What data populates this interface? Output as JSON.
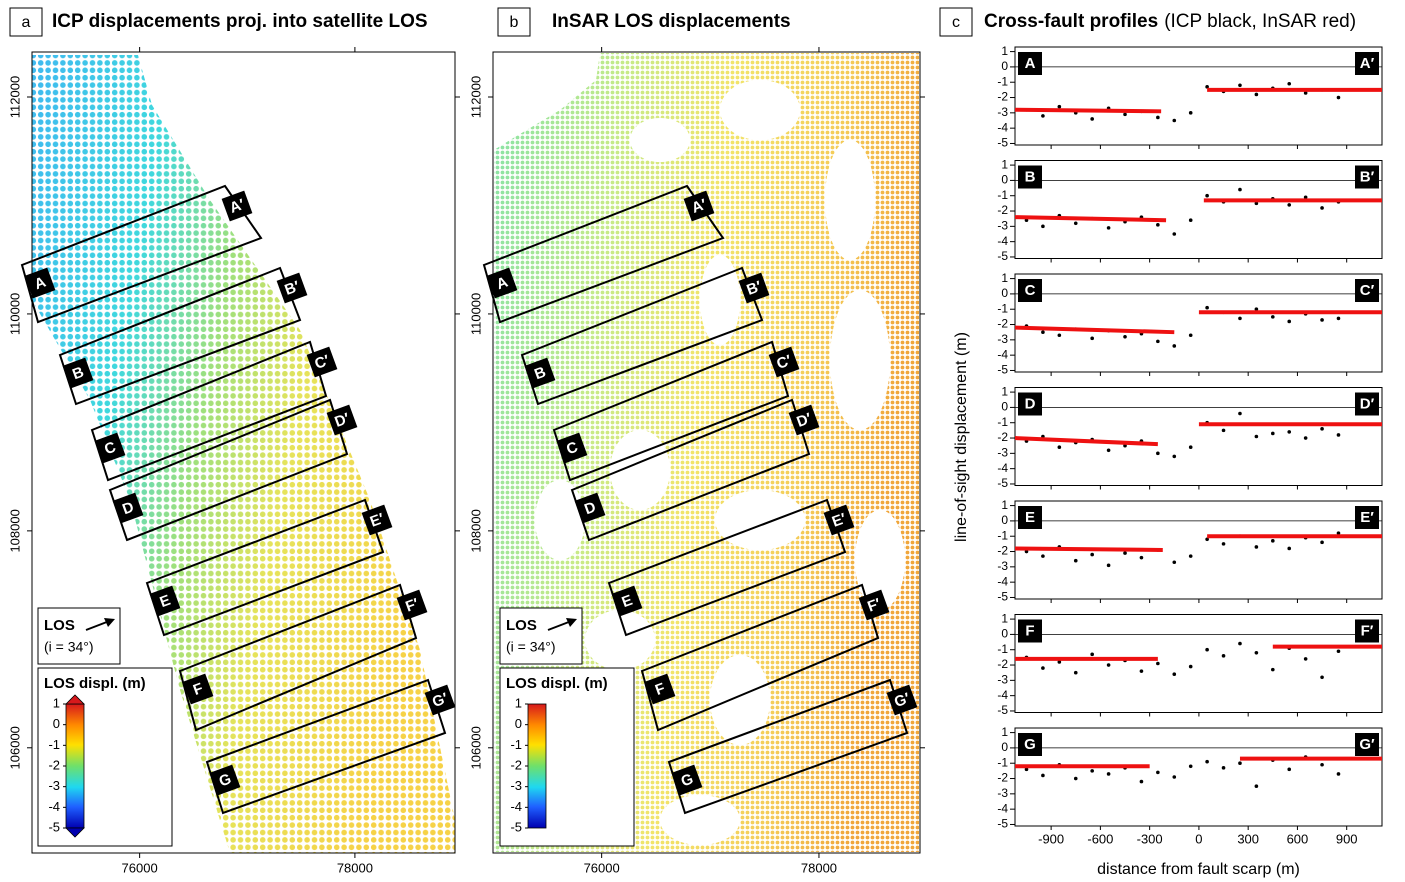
{
  "panels": [
    {
      "letter": "a",
      "title": "ICP displacements proj. into satellite LOS",
      "xlim": [
        75000,
        78930
      ],
      "xticks": [
        76000,
        78000
      ],
      "ylim": [
        105030,
        112415
      ],
      "yticks": [
        106000,
        108000,
        110000,
        112000
      ],
      "los": "LOS",
      "incidence": "(i = 34°)",
      "colorbar_title": "LOS displ. (m)",
      "colorbar_lim": [
        -5,
        1
      ],
      "colorbar_ticks": [
        1,
        0,
        -1,
        -2,
        -3,
        -4,
        -5
      ],
      "profiles": [
        {
          "start": "A",
          "end": "A′"
        },
        {
          "start": "B",
          "end": "B′"
        },
        {
          "start": "C",
          "end": "C′"
        },
        {
          "start": "D",
          "end": "D′"
        },
        {
          "start": "E",
          "end": "E′"
        },
        {
          "start": "F",
          "end": "F′"
        },
        {
          "start": "G",
          "end": "G′"
        }
      ]
    },
    {
      "letter": "b",
      "title": "InSAR LOS displacements",
      "xlim": [
        75000,
        78930
      ],
      "xticks": [
        76000,
        78000
      ],
      "ylim": [
        105030,
        112415
      ],
      "yticks": [
        106000,
        108000,
        110000,
        112000
      ],
      "los": "LOS",
      "incidence": "(i = 34°)",
      "colorbar_title": "LOS displ. (m)",
      "colorbar_lim": [
        -5,
        1
      ],
      "colorbar_ticks": [
        1,
        0,
        -1,
        -2,
        -3,
        -4,
        -5
      ],
      "profiles": [
        {
          "start": "A",
          "end": "A′"
        },
        {
          "start": "B",
          "end": "B′"
        },
        {
          "start": "C",
          "end": "C′"
        },
        {
          "start": "D",
          "end": "D′"
        },
        {
          "start": "E",
          "end": "E′"
        },
        {
          "start": "F",
          "end": "F′"
        },
        {
          "start": "G",
          "end": "G′"
        }
      ]
    }
  ],
  "chart_data": {
    "type": "scatter",
    "letter": "c",
    "title": "Cross-fault profiles",
    "subtitle": "(ICP black, InSAR red)",
    "xlabel": "distance from fault scarp (m)",
    "ylabel": "line-of-sight displacement (m)",
    "xlim": [
      -1120,
      1115
    ],
    "xticks": [
      -900,
      -600,
      -300,
      0,
      300,
      600,
      900
    ],
    "ylim": [
      -5.1,
      1.3
    ],
    "yticks": [
      1,
      0,
      -1,
      -2,
      -3,
      -4,
      -5
    ],
    "icp_color": "#000000",
    "insar_color": "#ee1111",
    "icp_x": [
      -1050,
      -950,
      -850,
      -750,
      -650,
      -550,
      -450,
      -350,
      -250,
      -150,
      -50,
      50,
      150,
      250,
      350,
      450,
      550,
      650,
      750,
      850
    ],
    "profiles": [
      {
        "start": "A",
        "end": "A′",
        "icp_y": [
          -2.8,
          -3.2,
          -2.6,
          -3.0,
          -3.4,
          -2.7,
          -3.1,
          -2.9,
          -3.3,
          -3.5,
          -3.0,
          -1.3,
          -1.6,
          -1.2,
          -1.8,
          -1.4,
          -1.1,
          -1.7,
          -1.5,
          -2.0
        ],
        "insar": [
          {
            "x": [
              -1120,
              -230
            ],
            "y": [
              -2.8,
              -2.9
            ]
          },
          {
            "x": [
              50,
              1115
            ],
            "y": [
              -1.5,
              -1.5
            ]
          }
        ]
      },
      {
        "start": "B",
        "end": "B′",
        "icp_y": [
          -2.6,
          -3.0,
          -2.3,
          -2.8,
          -2.5,
          -3.1,
          -2.7,
          -2.4,
          -2.9,
          -3.5,
          -2.6,
          -1.0,
          -1.4,
          -0.6,
          -1.5,
          -1.2,
          -1.6,
          -1.1,
          -1.8,
          -1.4
        ],
        "insar": [
          {
            "x": [
              -1120,
              -200
            ],
            "y": [
              -2.4,
              -2.6
            ]
          },
          {
            "x": [
              30,
              1115
            ],
            "y": [
              -1.3,
              -1.3
            ]
          }
        ]
      },
      {
        "start": "C",
        "end": "C′",
        "icp_y": [
          -2.1,
          -2.5,
          -2.7,
          -2.3,
          -2.9,
          -2.4,
          -2.8,
          -2.6,
          -3.1,
          -3.4,
          -2.7,
          -0.9,
          -1.2,
          -1.6,
          -1.0,
          -1.5,
          -1.8,
          -1.3,
          -1.7,
          -1.6
        ],
        "insar": [
          {
            "x": [
              -1120,
              -150
            ],
            "y": [
              -2.2,
              -2.5
            ]
          },
          {
            "x": [
              0,
              1115
            ],
            "y": [
              -1.2,
              -1.2
            ]
          }
        ]
      },
      {
        "start": "D",
        "end": "D′",
        "icp_y": [
          -2.2,
          -1.9,
          -2.6,
          -2.3,
          -2.1,
          -2.8,
          -2.5,
          -2.2,
          -3.0,
          -3.2,
          -2.6,
          -1.0,
          -1.5,
          -0.4,
          -1.9,
          -1.7,
          -1.6,
          -2.0,
          -1.4,
          -1.8
        ],
        "insar": [
          {
            "x": [
              -1120,
              -250
            ],
            "y": [
              -2.0,
              -2.4
            ]
          },
          {
            "x": [
              0,
              1115
            ],
            "y": [
              -1.1,
              -1.1
            ]
          }
        ]
      },
      {
        "start": "E",
        "end": "E′",
        "icp_y": [
          -2.0,
          -2.3,
          -1.7,
          -2.6,
          -2.2,
          -2.9,
          -2.1,
          -2.4,
          -1.9,
          -2.7,
          -2.3,
          -1.2,
          -1.5,
          -1.0,
          -1.7,
          -1.3,
          -1.8,
          -1.1,
          -1.4,
          -0.8
        ],
        "insar": [
          {
            "x": [
              -1120,
              -220
            ],
            "y": [
              -1.8,
              -1.9
            ]
          },
          {
            "x": [
              50,
              1115
            ],
            "y": [
              -1.0,
              -1.0
            ]
          }
        ]
      },
      {
        "start": "F",
        "end": "F′",
        "icp_y": [
          -1.5,
          -2.2,
          -1.8,
          -2.5,
          -1.3,
          -2.0,
          -1.7,
          -2.4,
          -1.9,
          -2.6,
          -2.1,
          -1.0,
          -1.4,
          -0.6,
          -1.2,
          -2.3,
          -0.9,
          -1.6,
          -2.8,
          -1.1
        ],
        "insar": [
          {
            "x": [
              -1120,
              -250
            ],
            "y": [
              -1.6,
              -1.6
            ]
          },
          {
            "x": [
              450,
              1115
            ],
            "y": [
              -0.8,
              -0.8
            ]
          }
        ]
      },
      {
        "start": "G",
        "end": "G′",
        "icp_y": [
          -1.4,
          -1.8,
          -1.1,
          -2.0,
          -1.5,
          -1.7,
          -1.3,
          -2.2,
          -1.6,
          -1.9,
          -1.2,
          -0.9,
          -1.3,
          -1.0,
          -2.5,
          -0.8,
          -1.4,
          -0.6,
          -1.1,
          -1.7
        ],
        "insar": [
          {
            "x": [
              -1120,
              -300
            ],
            "y": [
              -1.2,
              -1.2
            ]
          },
          {
            "x": [
              250,
              1115
            ],
            "y": [
              -0.7,
              -0.7
            ]
          }
        ]
      }
    ]
  }
}
